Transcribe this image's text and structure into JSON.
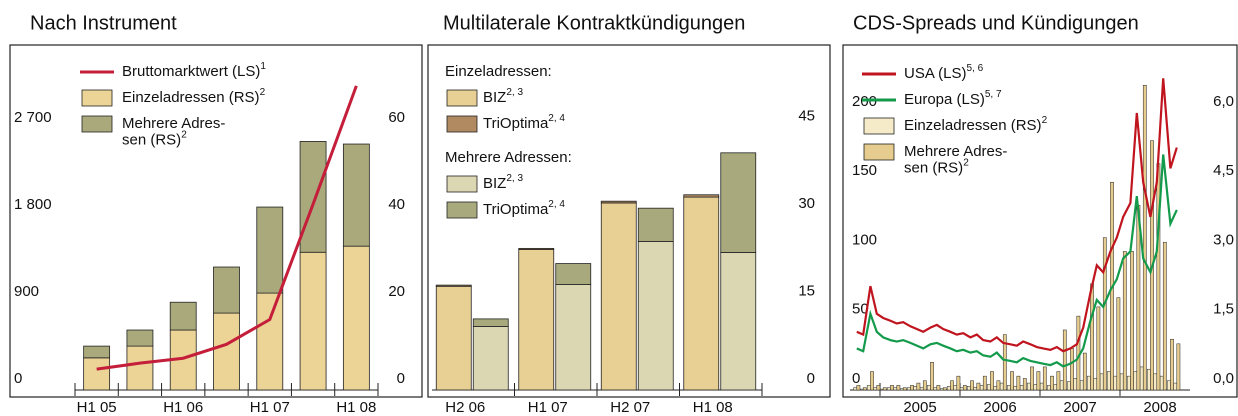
{
  "chart_data": [
    {
      "type": "bar",
      "stacked": true,
      "title": "Nach Instrument",
      "categories": [
        "H1 05",
        null,
        "H1 06",
        null,
        "H1 07",
        null,
        "H1 08"
      ],
      "ylim": [
        0,
        3500
      ],
      "yticks": [
        0,
        900,
        {
          "value": 1800,
          "label": "1 800"
        },
        {
          "value": 2700,
          "label": "2 700"
        }
      ],
      "y2lim": [
        0,
        77.78
      ],
      "y2ticks": [
        0,
        20,
        40,
        60
      ],
      "series": [
        {
          "name": "Bruttomarktwert (LS)",
          "note": "1",
          "type": "line",
          "color": "#c41e3a",
          "values": [
            216,
            278,
            329,
            473,
            730,
            1924,
            3149
          ]
        },
        {
          "name": "Einzeladressen (RS)",
          "note": "2",
          "type": "bar",
          "axis": "y2",
          "color": "#ecd497",
          "values": [
            7.4,
            10.1,
            13.8,
            17.7,
            22.3,
            31.7,
            33.1
          ]
        },
        {
          "name": "Mehrere Adres-\nsen (RS)",
          "note": "2",
          "type": "bar",
          "axis": "y2",
          "color": "#a9a97b",
          "values": [
            2.7,
            3.7,
            6.4,
            10.6,
            19.8,
            25.5,
            23.5
          ]
        }
      ]
    },
    {
      "type": "grouped_stacked_bar",
      "title": "Multilaterale Kontraktkündigungen",
      "categories": [
        "H2 06",
        "H1 07",
        "H2 07",
        "H1 08"
      ],
      "ylim": [
        0,
        58
      ],
      "yticks": [
        0,
        15,
        30,
        45
      ],
      "yaxis_side": "right",
      "groups": [
        "Einzeladressen:",
        "Mehrere Adressen:"
      ],
      "series": [
        {
          "name": "BIZ",
          "note": "2, 3",
          "group": 0,
          "color": "#e8cf93",
          "values": [
            17.8,
            24.1,
            32.1,
            33.1
          ]
        },
        {
          "name": "TriOptima",
          "note": "2, 4",
          "group": 0,
          "color": "#b18a61",
          "values": [
            0.2,
            0.2,
            0.3,
            0.4
          ]
        },
        {
          "name": "BIZ",
          "note": "2, 3",
          "group": 1,
          "color": "#dcd7b3",
          "values": [
            10.9,
            18.1,
            25.5,
            23.6
          ]
        },
        {
          "name": "TriOptima",
          "note": "2, 4",
          "group": 1,
          "color": "#a8a97c",
          "values": [
            1.3,
            3.6,
            5.7,
            17.1
          ]
        }
      ]
    },
    {
      "type": "line",
      "title": "CDS-Spreads und Kündigungen",
      "x": [
        2004.71,
        2004.79,
        2004.88,
        2004.96,
        2005.04,
        2005.13,
        2005.21,
        2005.29,
        2005.38,
        2005.46,
        2005.54,
        2005.63,
        2005.71,
        2005.79,
        2005.88,
        2005.96,
        2006.04,
        2006.13,
        2006.21,
        2006.29,
        2006.38,
        2006.46,
        2006.54,
        2006.63,
        2006.71,
        2006.79,
        2006.88,
        2006.96,
        2007.04,
        2007.13,
        2007.21,
        2007.29,
        2007.38,
        2007.46,
        2007.54,
        2007.63,
        2007.71,
        2007.79,
        2007.88,
        2007.96,
        2008.04,
        2008.13,
        2008.21,
        2008.29,
        2008.38,
        2008.46,
        2008.54,
        2008.63,
        2008.71
      ],
      "xlim": [
        2004.625,
        2008.875
      ],
      "xticks": [
        {
          "value": 2005,
          "label": "2005"
        },
        {
          "value": 2006,
          "label": "2006"
        },
        {
          "value": 2007,
          "label": "2007"
        },
        {
          "value": 2008,
          "label": "2008"
        }
      ],
      "ylim": [
        0,
        244
      ],
      "yticks": [
        0,
        50,
        100,
        150,
        200
      ],
      "y2lim": [
        0,
        7.32
      ],
      "y2ticks": [
        {
          "value": 0,
          "label": "0,0"
        },
        {
          "value": 1.5,
          "label": "1,5"
        },
        {
          "value": 3,
          "label": "3,0"
        },
        {
          "value": 4.5,
          "label": "4,5"
        },
        {
          "value": 6,
          "label": "6,0"
        }
      ],
      "series": [
        {
          "name": "USA (LS)",
          "note": "5, 6",
          "type": "line",
          "color": "#c0141e",
          "values": [
            42,
            40,
            75,
            55,
            52,
            50,
            48,
            49,
            46,
            44,
            42,
            45,
            47,
            44,
            42,
            40,
            41,
            38,
            40,
            36,
            35,
            38,
            34,
            33,
            32,
            35,
            33,
            31,
            30,
            29,
            31,
            28,
            30,
            33,
            45,
            70,
            90,
            85,
            100,
            110,
            125,
            135,
            200,
            150,
            125,
            150,
            225,
            160,
            175
          ]
        },
        {
          "name": "Europa (LS)",
          "note": "5, 7",
          "type": "line",
          "color": "#139a4a",
          "values": [
            30,
            28,
            55,
            42,
            38,
            36,
            35,
            36,
            34,
            32,
            30,
            33,
            34,
            32,
            30,
            28,
            29,
            27,
            28,
            25,
            24,
            27,
            22,
            21,
            20,
            23,
            21,
            20,
            19,
            18,
            20,
            17,
            19,
            22,
            30,
            50,
            65,
            60,
            72,
            80,
            95,
            100,
            140,
            95,
            85,
            100,
            170,
            120,
            130
          ]
        },
        {
          "name": "Einzeladressen (RS)",
          "note": "2",
          "type": "bar",
          "axis": "y2",
          "color": "#f6ebc8",
          "values": [
            0.05,
            0.02,
            0.1,
            0.05,
            0.02,
            0.05,
            0.05,
            0.03,
            0.05,
            0.08,
            0.05,
            0.1,
            0.05,
            0.03,
            0.08,
            0.1,
            0.05,
            0.08,
            0.06,
            0.1,
            0.12,
            0.08,
            0.15,
            0.1,
            0.08,
            0.1,
            0.15,
            0.12,
            0.15,
            0.1,
            0.12,
            0.2,
            0.18,
            0.25,
            0.2,
            0.3,
            0.25,
            0.35,
            0.4,
            0.3,
            0.35,
            0.3,
            0.4,
            0.5,
            0.45,
            0.35,
            0.3,
            0.2,
            0.15
          ]
        },
        {
          "name": "Mehrere Adres-\nsen (RS)",
          "note": "2",
          "type": "bar",
          "axis": "y2",
          "color": "#e6cc8e",
          "values": [
            0.1,
            0.05,
            0.4,
            0.1,
            0.05,
            0.1,
            0.1,
            0.05,
            0.1,
            0.15,
            0.2,
            0.6,
            0.1,
            0.05,
            0.2,
            0.3,
            0.1,
            0.2,
            0.15,
            0.3,
            0.4,
            0.2,
            1.2,
            0.4,
            0.3,
            0.25,
            0.5,
            0.4,
            0.5,
            0.3,
            0.4,
            1.3,
            0.9,
            1.6,
            0.8,
            2.3,
            1.8,
            3.3,
            4.5,
            2.0,
            3.0,
            3.0,
            4.0,
            6.6,
            5.4,
            4.9,
            3.2,
            1.1,
            1.0
          ]
        }
      ]
    }
  ]
}
